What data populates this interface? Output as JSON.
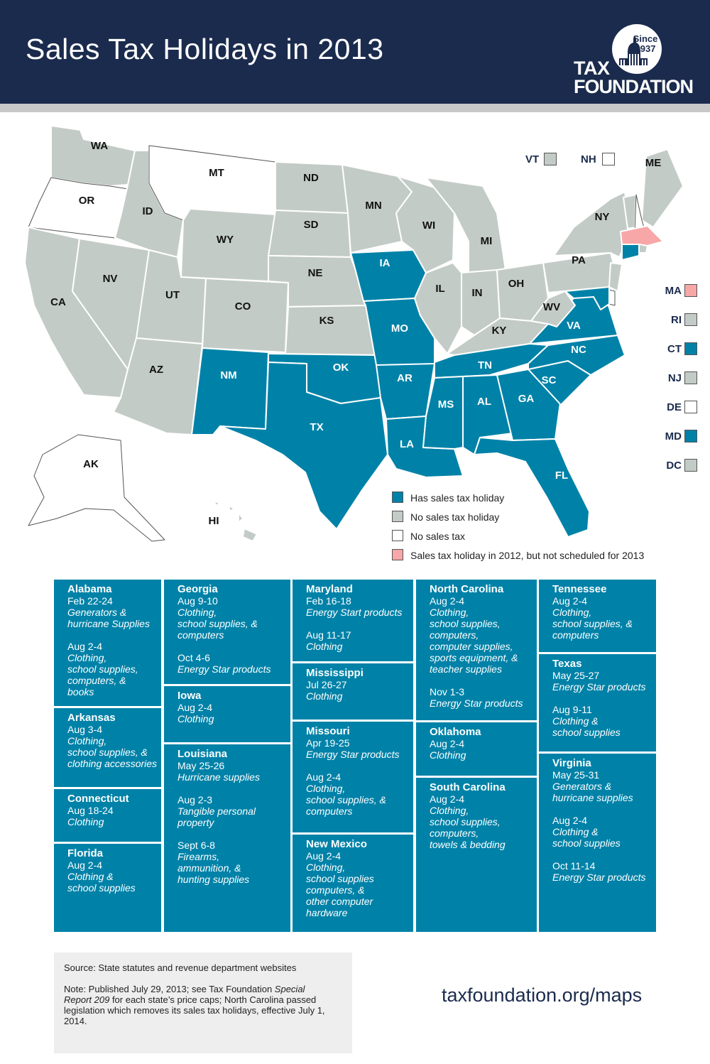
{
  "header": {
    "title": "Sales Tax Holidays in 2013",
    "logo": {
      "since": "Since",
      "year": "1937",
      "line1": "TAX",
      "line2": "FOUNDATION"
    }
  },
  "colors": {
    "holiday": "#0082a8",
    "no_holiday": "#c3cbc7",
    "no_tax": "#ffffff",
    "lapsed": "#f7a7a7",
    "header": "#1b2b4d"
  },
  "map": {
    "states": {
      "WA": {
        "label": "WA",
        "status": "no_holiday"
      },
      "OR": {
        "label": "OR",
        "status": "no_tax"
      },
      "CA": {
        "label": "CA",
        "status": "no_holiday"
      },
      "NV": {
        "label": "NV",
        "status": "no_holiday"
      },
      "ID": {
        "label": "ID",
        "status": "no_holiday"
      },
      "MT": {
        "label": "MT",
        "status": "no_tax"
      },
      "WY": {
        "label": "WY",
        "status": "no_holiday"
      },
      "UT": {
        "label": "UT",
        "status": "no_holiday"
      },
      "AZ": {
        "label": "AZ",
        "status": "no_holiday"
      },
      "CO": {
        "label": "CO",
        "status": "no_holiday"
      },
      "NM": {
        "label": "NM",
        "status": "holiday"
      },
      "ND": {
        "label": "ND",
        "status": "no_holiday"
      },
      "SD": {
        "label": "SD",
        "status": "no_holiday"
      },
      "NE": {
        "label": "NE",
        "status": "no_holiday"
      },
      "KS": {
        "label": "KS",
        "status": "no_holiday"
      },
      "OK": {
        "label": "OK",
        "status": "holiday"
      },
      "TX": {
        "label": "TX",
        "status": "holiday"
      },
      "MN": {
        "label": "MN",
        "status": "no_holiday"
      },
      "IA": {
        "label": "IA",
        "status": "holiday"
      },
      "MO": {
        "label": "MO",
        "status": "holiday"
      },
      "AR": {
        "label": "AR",
        "status": "holiday"
      },
      "LA": {
        "label": "LA",
        "status": "holiday"
      },
      "WI": {
        "label": "WI",
        "status": "no_holiday"
      },
      "IL": {
        "label": "IL",
        "status": "no_holiday"
      },
      "MI": {
        "label": "MI",
        "status": "no_holiday"
      },
      "IN": {
        "label": "IN",
        "status": "no_holiday"
      },
      "OH": {
        "label": "OH",
        "status": "no_holiday"
      },
      "KY": {
        "label": "KY",
        "status": "no_holiday"
      },
      "TN": {
        "label": "TN",
        "status": "holiday"
      },
      "MS": {
        "label": "MS",
        "status": "holiday"
      },
      "AL": {
        "label": "AL",
        "status": "holiday"
      },
      "GA": {
        "label": "GA",
        "status": "holiday"
      },
      "FL": {
        "label": "FL",
        "status": "holiday"
      },
      "SC": {
        "label": "SC",
        "status": "holiday"
      },
      "NC": {
        "label": "NC",
        "status": "holiday"
      },
      "VA": {
        "label": "VA",
        "status": "holiday"
      },
      "WV": {
        "label": "WV",
        "status": "no_holiday"
      },
      "PA": {
        "label": "PA",
        "status": "no_holiday"
      },
      "NY": {
        "label": "NY",
        "status": "no_holiday"
      },
      "ME": {
        "label": "ME",
        "status": "no_holiday"
      },
      "AK": {
        "label": "AK",
        "status": "no_tax"
      },
      "HI": {
        "label": "HI",
        "status": "no_holiday"
      }
    },
    "small_states": [
      {
        "label": "VT",
        "status": "no_holiday"
      },
      {
        "label": "NH",
        "status": "no_tax"
      },
      {
        "label": "MA",
        "status": "lapsed"
      },
      {
        "label": "RI",
        "status": "no_holiday"
      },
      {
        "label": "CT",
        "status": "holiday"
      },
      {
        "label": "NJ",
        "status": "no_holiday"
      },
      {
        "label": "DE",
        "status": "no_tax"
      },
      {
        "label": "MD",
        "status": "holiday"
      },
      {
        "label": "DC",
        "status": "no_holiday"
      }
    ],
    "legend": [
      {
        "label": "Has sales tax holiday",
        "status": "holiday"
      },
      {
        "label": "No sales tax holiday",
        "status": "no_holiday"
      },
      {
        "label": "No sales tax",
        "status": "no_tax"
      },
      {
        "label": "Sales tax holiday in 2012, but not scheduled for 2013",
        "status": "lapsed"
      }
    ]
  },
  "holidays": {
    "alabama": {
      "state": "Alabama",
      "dates": [
        {
          "date": "Feb 22-24",
          "items": [
            "Generators &",
            "hurricane Supplies"
          ]
        },
        {
          "date": "Aug 2-4",
          "items": [
            "Clothing,",
            "school supplies,",
            "computers, &",
            "books"
          ]
        }
      ]
    },
    "arkansas": {
      "state": "Arkansas",
      "dates": [
        {
          "date": "Aug 3-4",
          "items": [
            "Clothing,",
            "school supplies, &",
            "clothing accessories"
          ]
        }
      ]
    },
    "connecticut": {
      "state": "Connecticut",
      "dates": [
        {
          "date": "Aug 18-24",
          "items": [
            "Clothing"
          ]
        }
      ]
    },
    "florida": {
      "state": "Florida",
      "dates": [
        {
          "date": "Aug 2-4",
          "items": [
            "Clothing &",
            "school supplies"
          ]
        }
      ]
    },
    "georgia": {
      "state": "Georgia",
      "dates": [
        {
          "date": "Aug 9-10",
          "items": [
            "Clothing,",
            "school supplies, &",
            "computers"
          ]
        },
        {
          "date": "Oct 4-6",
          "items": [
            "Energy Star products"
          ]
        }
      ]
    },
    "iowa": {
      "state": "Iowa",
      "dates": [
        {
          "date": "Aug 2-4",
          "items": [
            "Clothing"
          ]
        }
      ]
    },
    "louisiana": {
      "state": "Louisiana",
      "dates": [
        {
          "date": "May 25-26",
          "items": [
            "Hurricane supplies"
          ]
        },
        {
          "date": "Aug 2-3",
          "items": [
            "Tangible personal",
            "property"
          ]
        },
        {
          "date": "Sept 6-8",
          "items": [
            "Firearms,",
            "ammunition, &",
            "hunting supplies"
          ]
        }
      ]
    },
    "maryland": {
      "state": "Maryland",
      "dates": [
        {
          "date": "Feb 16-18",
          "items": [
            "Energy Start products"
          ]
        },
        {
          "date": "Aug 11-17",
          "items": [
            "Clothing"
          ]
        }
      ]
    },
    "mississippi": {
      "state": "Mississippi",
      "dates": [
        {
          "date": "Jul 26-27",
          "items": [
            "Clothing"
          ]
        }
      ]
    },
    "missouri": {
      "state": "Missouri",
      "dates": [
        {
          "date": "Apr 19-25",
          "items": [
            "Energy Star products"
          ]
        },
        {
          "date": "Aug 2-4",
          "items": [
            "Clothing,",
            "school supplies, &",
            "computers"
          ]
        }
      ]
    },
    "new_mexico": {
      "state": "New Mexico",
      "dates": [
        {
          "date": "Aug 2-4",
          "items": [
            "Clothing,",
            "school supplies",
            "computers, &",
            "other computer",
            "hardware"
          ]
        }
      ]
    },
    "north_carolina": {
      "state": "North Carolina",
      "dates": [
        {
          "date": "Aug 2-4",
          "items": [
            "Clothing,",
            "school supplies,",
            "computers,",
            "computer supplies,",
            "sports equipment, &",
            "teacher supplies"
          ]
        },
        {
          "date": "Nov 1-3",
          "items": [
            "Energy Star products"
          ]
        }
      ]
    },
    "oklahoma": {
      "state": "Oklahoma",
      "dates": [
        {
          "date": "Aug 2-4",
          "items": [
            "Clothing"
          ]
        }
      ]
    },
    "south_carolina": {
      "state": "South Carolina",
      "dates": [
        {
          "date": "Aug 2-4",
          "items": [
            "Clothing,",
            "school supplies,",
            "computers,",
            "towels & bedding"
          ]
        }
      ]
    },
    "tennessee": {
      "state": "Tennessee",
      "dates": [
        {
          "date": "Aug 2-4",
          "items": [
            "Clothing,",
            "school supplies, &",
            "computers"
          ]
        }
      ]
    },
    "texas": {
      "state": "Texas",
      "dates": [
        {
          "date": "May 25-27",
          "items": [
            "Energy Star products"
          ]
        },
        {
          "date": "Aug 9-11",
          "items": [
            "Clothing &",
            "school supplies"
          ]
        }
      ]
    },
    "virginia": {
      "state": "Virginia",
      "dates": [
        {
          "date": "May 25-31",
          "items": [
            "Generators &",
            "hurricane supplies"
          ]
        },
        {
          "date": "Aug 2-4",
          "items": [
            "Clothing &",
            "school supplies"
          ]
        },
        {
          "date": "Oct 11-14",
          "items": [
            "Energy Star products"
          ]
        }
      ]
    }
  },
  "footer": {
    "source": "Source: State statutes and revenue department websites",
    "note_prefix": "Note: Published July 29, 2013; see Tax Foundation ",
    "note_report": "Special Report 209",
    "note_suffix": " for each state’s price caps; North Carolina passed legislation which removes its sales tax holidays, effective July 1, 2014.",
    "website": "taxfoundation.org/maps"
  }
}
